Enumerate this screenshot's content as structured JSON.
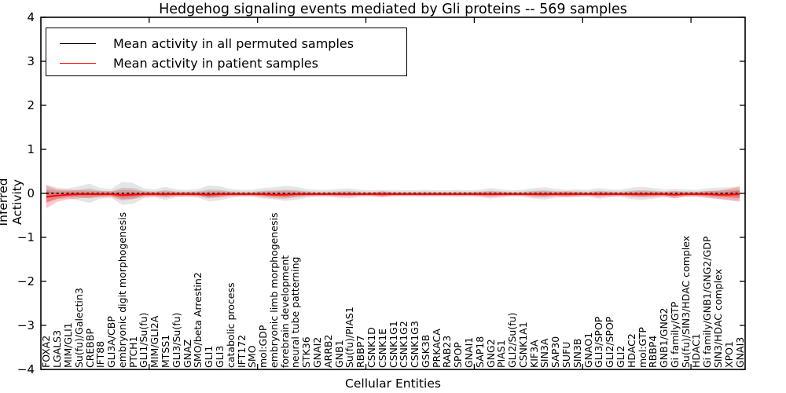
{
  "title": "Hedgehog signaling events mediated by Gli proteins -- 569 samples",
  "x_axis_label": "Cellular Entities",
  "y_axis_label": "Inferred Activity",
  "y_tick_labels": [
    "4",
    "3",
    "2",
    "1",
    "0",
    "−1",
    "−2",
    "−3",
    "−4"
  ],
  "legend": {
    "items": [
      {
        "label": "Mean activity in all permuted samples",
        "color": "#000000"
      },
      {
        "label": "Mean activity in patient samples",
        "color": "#ff0000"
      }
    ]
  },
  "chart_data": {
    "type": "line",
    "title": "Hedgehog signaling events mediated by Gli proteins -- 569 samples",
    "xlabel": "Cellular Entities",
    "ylabel": "Inferred Activity",
    "ylim": [
      -4,
      4
    ],
    "yticks": [
      -4,
      -3,
      -2,
      -1,
      0,
      1,
      2,
      3,
      4
    ],
    "xticks": [
      10,
      20,
      30,
      40,
      50,
      60
    ],
    "grid": false,
    "legend_position": "upper left",
    "categories": [
      "FOXA2",
      "LGALS3",
      "MIM/GLI1",
      "Su(fu)/Galectin3",
      "CREBBP",
      "IFT88",
      "GLI3A/CBP",
      "embryonic digit morphogenesis",
      "PTCH1",
      "GLI1/Su(fu)",
      "MIM/GLI2A",
      "MTSS1",
      "GLI3/Su(fu)",
      "GNAZ",
      "SMO/beta Arrestin2",
      "GLI1",
      "GLI3",
      "catabolic process",
      "IFT172",
      "SMO",
      "mol:GDP",
      "embryonic limb morphogenesis",
      "forebrain development",
      "neural tube patterning",
      "STK36",
      "GNAI2",
      "ARRB2",
      "GNB1",
      "Su(fu)/PIAS1",
      "RBBP7",
      "CSNK1D",
      "CSNK1E",
      "CSNK1G1",
      "CSNK1G2",
      "CSNK1G3",
      "GSK3B",
      "PRKACA",
      "RAB23",
      "SPOP",
      "GNAI1",
      "SAP18",
      "GNG2",
      "PIAS1",
      "GLI2/Su(fu)",
      "CSNK1A1",
      "KIF3A",
      "SIN3A",
      "SAP30",
      "SUFU",
      "SIN3B",
      "GNAO1",
      "GLI3/SPOP",
      "GLI2/SPOP",
      "GLI2",
      "HDAC2",
      "mol:GTP",
      "RBBP4",
      "GNB1/GNG2",
      "Gi family/GTP",
      "Su(fu)/SIN3/HDAC complex",
      "HDAC1",
      "Gi family/GNB1/GNG2/GDP",
      "SIN3/HDAC complex",
      "XPO1",
      "GNAI3"
    ],
    "series": [
      {
        "name": "Mean activity in all permuted samples",
        "color": "#000000",
        "line_style": "dashed",
        "band_color": "#888888",
        "values": [
          0,
          0,
          0,
          0,
          0,
          0,
          0,
          0,
          0,
          0,
          0,
          0,
          0,
          0,
          0,
          0,
          0,
          0,
          0,
          0,
          0,
          0,
          0,
          0,
          0,
          0,
          0,
          0,
          0,
          0,
          0,
          0,
          0,
          0,
          0,
          0,
          0,
          0,
          0,
          0,
          0,
          0,
          0,
          0,
          0,
          0,
          0,
          0,
          0,
          0,
          0,
          0,
          0,
          0,
          0,
          0,
          0,
          0,
          0,
          0,
          0,
          0,
          0,
          0,
          0
        ],
        "band_half_width": [
          0.2,
          0.13,
          0.11,
          0.16,
          0.22,
          0.12,
          0.1,
          0.26,
          0.24,
          0.11,
          0.09,
          0.15,
          0.09,
          0.08,
          0.1,
          0.18,
          0.16,
          0.1,
          0.08,
          0.08,
          0.12,
          0.14,
          0.17,
          0.15,
          0.1,
          0.08,
          0.08,
          0.1,
          0.11,
          0.08,
          0.07,
          0.08,
          0.07,
          0.07,
          0.07,
          0.08,
          0.07,
          0.07,
          0.08,
          0.07,
          0.08,
          0.12,
          0.09,
          0.07,
          0.08,
          0.12,
          0.14,
          0.1,
          0.08,
          0.09,
          0.08,
          0.12,
          0.09,
          0.08,
          0.13,
          0.15,
          0.12,
          0.09,
          0.1,
          0.09,
          0.08,
          0.11,
          0.13,
          0.14,
          0.16
        ]
      },
      {
        "name": "Mean activity in patient samples",
        "color": "#ff0000",
        "line_style": "solid",
        "band_color": "#ee3333",
        "values": [
          -0.08,
          -0.05,
          -0.03,
          -0.02,
          -0.02,
          -0.02,
          -0.02,
          -0.04,
          -0.03,
          -0.02,
          -0.02,
          -0.02,
          -0.02,
          -0.02,
          -0.02,
          -0.03,
          -0.02,
          -0.02,
          -0.02,
          -0.02,
          -0.02,
          -0.03,
          -0.03,
          -0.02,
          -0.02,
          -0.02,
          -0.02,
          -0.02,
          -0.02,
          -0.02,
          -0.02,
          -0.02,
          -0.02,
          -0.02,
          -0.02,
          -0.02,
          -0.02,
          -0.02,
          -0.02,
          -0.02,
          -0.02,
          -0.02,
          -0.02,
          -0.02,
          -0.02,
          -0.02,
          -0.02,
          -0.02,
          -0.02,
          -0.02,
          -0.02,
          -0.02,
          -0.02,
          -0.02,
          -0.02,
          -0.02,
          -0.02,
          -0.02,
          -0.03,
          -0.02,
          -0.02,
          -0.02,
          -0.03,
          -0.03,
          -0.02
        ],
        "band_half_width": [
          0.26,
          0.14,
          0.11,
          0.09,
          0.08,
          0.07,
          0.06,
          0.12,
          0.1,
          0.06,
          0.05,
          0.07,
          0.05,
          0.05,
          0.05,
          0.08,
          0.07,
          0.05,
          0.04,
          0.04,
          0.06,
          0.08,
          0.09,
          0.07,
          0.05,
          0.04,
          0.04,
          0.05,
          0.05,
          0.04,
          0.04,
          0.07,
          0.04,
          0.04,
          0.04,
          0.04,
          0.04,
          0.04,
          0.04,
          0.04,
          0.05,
          0.06,
          0.05,
          0.04,
          0.04,
          0.06,
          0.07,
          0.05,
          0.07,
          0.05,
          0.04,
          0.06,
          0.05,
          0.04,
          0.06,
          0.07,
          0.06,
          0.05,
          0.08,
          0.05,
          0.05,
          0.07,
          0.09,
          0.13,
          0.17
        ]
      }
    ]
  }
}
